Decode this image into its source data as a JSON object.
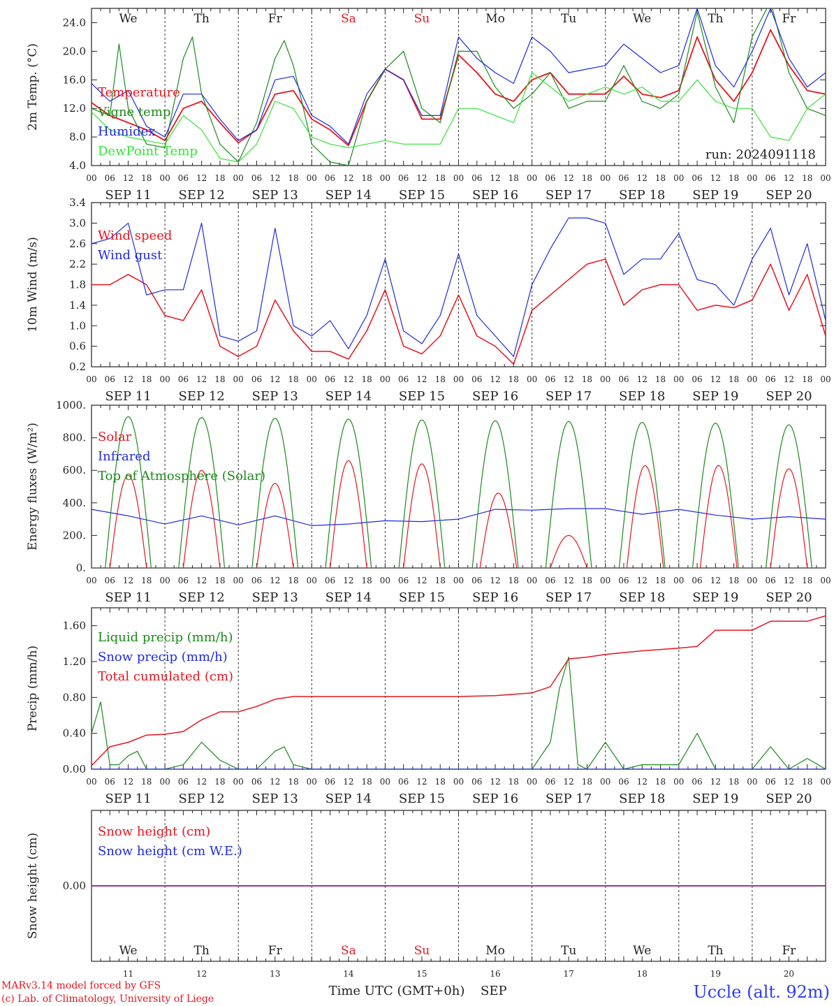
{
  "colors": {
    "red": "#e8141e",
    "dark_green": "#1a8a1a",
    "blue": "#1f2ae0",
    "light_green": "#36e336",
    "purple": "#8a2a8a",
    "axis": "#222222",
    "station": "#2b3ef0"
  },
  "days": [
    "We",
    "Th",
    "Fr",
    "Sa",
    "Su",
    "Mo",
    "Tu",
    "We",
    "Th",
    "Fr"
  ],
  "weekend_days": [
    "Sa",
    "Su"
  ],
  "dates": [
    "SEP 11",
    "SEP 12",
    "SEP 13",
    "SEP 14",
    "SEP 15",
    "SEP 16",
    "SEP 17",
    "SEP 18",
    "SEP 19",
    "SEP 20"
  ],
  "day_numbers": [
    "11",
    "12",
    "13",
    "14",
    "15",
    "16",
    "17",
    "18",
    "19",
    "20"
  ],
  "hour_ticks": [
    "00",
    "06",
    "12",
    "18"
  ],
  "hour_end": "00",
  "run_label": "run: 2024091118",
  "footer": {
    "model": "MARv3.14 model forced by GFS",
    "credit": "(c) Lab. of Climatology, University of Liege",
    "time_axis": "Time UTC (GMT+0h)",
    "month": "SEP",
    "station": "Uccle (alt. 92m)"
  },
  "chart_data": [
    {
      "type": "line",
      "ylabel": "2m Temp. (°C)",
      "ylim": [
        4,
        26
      ],
      "yticks": [
        "4.0",
        "8.0",
        "12.0",
        "16.0",
        "20.0",
        "24.0"
      ],
      "yvals": [
        4,
        8,
        12,
        16,
        20,
        24
      ],
      "x_unit": "hours since SEP 11 00 UTC",
      "series": [
        {
          "name": "Temperature",
          "color": "red",
          "x": [
            0,
            6,
            12,
            18,
            24,
            30,
            36,
            42,
            48,
            54,
            60,
            66,
            72,
            78,
            84,
            90,
            96,
            102,
            108,
            114,
            120,
            126,
            132,
            138,
            144,
            150,
            156,
            162,
            168,
            174,
            180,
            186,
            192,
            198,
            204,
            210,
            216,
            222,
            228,
            234,
            240
          ],
          "values": [
            12.8,
            11,
            10,
            9,
            7.5,
            12,
            13,
            10,
            7.2,
            9,
            14,
            14.5,
            10.5,
            9,
            6.8,
            13,
            17.5,
            16,
            10.5,
            10.5,
            19.5,
            17,
            14,
            13,
            16,
            17,
            14,
            14,
            14,
            16.5,
            14,
            13.5,
            14.5,
            22,
            16,
            13,
            17,
            23,
            18,
            14.5,
            14
          ]
        },
        {
          "name": "Vigne temp",
          "color": "dark_green",
          "x": [
            0,
            6,
            9,
            12,
            18,
            24,
            30,
            33,
            36,
            42,
            48,
            54,
            60,
            63,
            66,
            72,
            78,
            84,
            90,
            96,
            102,
            108,
            114,
            120,
            126,
            132,
            138,
            144,
            150,
            156,
            162,
            168,
            174,
            180,
            186,
            192,
            198,
            204,
            210,
            216,
            222,
            228,
            234,
            240
          ],
          "values": [
            12,
            11,
            21,
            12,
            7,
            6.5,
            19,
            22,
            14,
            7,
            4.5,
            10,
            19,
            21.5,
            18,
            7,
            4.5,
            4,
            13,
            17.5,
            20,
            12,
            10,
            20,
            20,
            15,
            12,
            14,
            17,
            12,
            13,
            13,
            18,
            13,
            12,
            14,
            25.5,
            15,
            10,
            22,
            27,
            17,
            12,
            11
          ]
        },
        {
          "name": "Humidex",
          "color": "blue",
          "x": [
            0,
            6,
            12,
            18,
            24,
            30,
            36,
            42,
            48,
            54,
            60,
            66,
            72,
            78,
            84,
            90,
            96,
            102,
            108,
            114,
            120,
            126,
            132,
            138,
            144,
            150,
            156,
            162,
            168,
            174,
            180,
            186,
            192,
            198,
            204,
            210,
            216,
            222,
            228,
            234,
            240
          ],
          "values": [
            15.5,
            13,
            14.5,
            9.5,
            8,
            14,
            14,
            10.5,
            7.5,
            9,
            16,
            16.5,
            11,
            9.5,
            7,
            14,
            17.5,
            16,
            11,
            11,
            22,
            19,
            17,
            15.5,
            22,
            20,
            17,
            17.5,
            18,
            21,
            19,
            17,
            18,
            26,
            18,
            15,
            20,
            26,
            19,
            15,
            17
          ]
        },
        {
          "name": "DewPoint Temp",
          "color": "light_green",
          "x": [
            0,
            6,
            12,
            18,
            24,
            30,
            36,
            42,
            48,
            54,
            60,
            66,
            72,
            78,
            84,
            90,
            96,
            102,
            108,
            114,
            120,
            126,
            132,
            138,
            144,
            150,
            156,
            162,
            168,
            174,
            180,
            186,
            192,
            198,
            204,
            210,
            216,
            222,
            228,
            234,
            240
          ],
          "values": [
            11.5,
            9,
            8,
            7.5,
            7,
            11,
            9,
            5,
            4.5,
            7,
            13,
            12,
            8,
            7,
            6.5,
            7,
            7.5,
            7,
            7,
            7,
            12,
            12,
            11,
            10,
            17,
            15,
            13,
            14,
            15,
            14,
            15,
            13,
            13,
            16,
            13,
            12,
            12,
            8,
            7.5,
            12,
            14
          ]
        }
      ]
    },
    {
      "type": "line",
      "ylabel": "10m Wind (m/s)",
      "ylim": [
        0.2,
        3.4
      ],
      "yticks": [
        "0.2",
        "0.6",
        "1.0",
        "1.4",
        "1.8",
        "2.2",
        "2.6",
        "3.0",
        "3.4"
      ],
      "yvals": [
        0.2,
        0.6,
        1.0,
        1.4,
        1.8,
        2.2,
        2.6,
        3.0,
        3.4
      ],
      "x_unit": "hours since SEP 11 00 UTC",
      "series": [
        {
          "name": "Wind speed",
          "color": "red",
          "x": [
            0,
            6,
            12,
            18,
            24,
            30,
            36,
            42,
            48,
            54,
            60,
            66,
            72,
            78,
            84,
            90,
            96,
            102,
            108,
            114,
            120,
            126,
            132,
            138,
            144,
            150,
            156,
            162,
            168,
            174,
            180,
            186,
            192,
            198,
            204,
            210,
            216,
            222,
            228,
            234,
            240
          ],
          "values": [
            1.8,
            1.8,
            2.0,
            1.8,
            1.2,
            1.1,
            1.7,
            0.6,
            0.4,
            0.6,
            1.5,
            0.9,
            0.5,
            0.5,
            0.35,
            0.9,
            1.7,
            0.6,
            0.45,
            0.8,
            1.6,
            0.8,
            0.6,
            0.25,
            1.3,
            1.6,
            1.9,
            2.2,
            2.3,
            1.4,
            1.7,
            1.8,
            1.8,
            1.3,
            1.4,
            1.35,
            1.5,
            2.2,
            1.3,
            2.0,
            0.8
          ]
        },
        {
          "name": "Wind gust",
          "color": "blue",
          "x": [
            0,
            6,
            12,
            18,
            24,
            30,
            36,
            42,
            48,
            54,
            60,
            66,
            72,
            78,
            84,
            90,
            96,
            102,
            108,
            114,
            120,
            126,
            132,
            138,
            144,
            150,
            156,
            162,
            168,
            174,
            180,
            186,
            192,
            198,
            204,
            210,
            216,
            222,
            228,
            234,
            240
          ],
          "values": [
            2.6,
            2.7,
            3.0,
            1.6,
            1.7,
            1.7,
            3.0,
            0.8,
            0.7,
            0.9,
            2.9,
            1.0,
            0.8,
            1.1,
            0.55,
            1.2,
            2.3,
            0.9,
            0.65,
            1.2,
            2.4,
            1.2,
            0.8,
            0.4,
            1.8,
            2.5,
            3.1,
            3.1,
            3.0,
            2.0,
            2.3,
            2.3,
            2.8,
            1.9,
            1.8,
            1.4,
            2.3,
            2.9,
            1.6,
            2.6,
            1.1
          ]
        }
      ]
    },
    {
      "type": "line",
      "ylabel": "Energy fluxes (W/m²)",
      "ylim": [
        0,
        1000
      ],
      "yticks": [
        "0.",
        "200.",
        "400.",
        "600.",
        "800.",
        "1000."
      ],
      "yvals": [
        0,
        200,
        400,
        600,
        800,
        1000
      ],
      "x_unit": "hours since SEP 11 00 UTC",
      "series": [
        {
          "name": "Solar",
          "color": "red",
          "peaks": [
            570,
            600,
            520,
            660,
            640,
            460,
            200,
            630,
            630,
            610
          ],
          "peak_hours": [
            12,
            12,
            12,
            12,
            12,
            13,
            12,
            13,
            13,
            12
          ]
        },
        {
          "name": "Infrared",
          "color": "blue",
          "x": [
            0,
            12,
            24,
            36,
            48,
            60,
            72,
            84,
            96,
            108,
            120,
            132,
            144,
            156,
            168,
            180,
            192,
            204,
            216,
            228,
            240
          ],
          "values": [
            360,
            320,
            270,
            320,
            265,
            320,
            260,
            270,
            290,
            285,
            300,
            360,
            355,
            365,
            365,
            330,
            360,
            325,
            300,
            315,
            300
          ]
        },
        {
          "name": "Top of Atmosphere (Solar)",
          "color": "dark_green",
          "peaks": [
            930,
            925,
            920,
            915,
            910,
            905,
            900,
            895,
            890,
            880
          ]
        }
      ]
    },
    {
      "type": "line",
      "ylabel": "Precip (mm/h)",
      "ylim": [
        0,
        1.8
      ],
      "yticks": [
        "0.00",
        "0.40",
        "0.80",
        "1.20",
        "1.60"
      ],
      "yvals": [
        0,
        0.4,
        0.8,
        1.2,
        1.6
      ],
      "x_unit": "hours since SEP 11 00 UTC",
      "series": [
        {
          "name": "Liquid precip (mm/h)",
          "color": "dark_green",
          "x": [
            0,
            3,
            6,
            9,
            12,
            15,
            18,
            24,
            30,
            36,
            39,
            42,
            45,
            48,
            54,
            60,
            63,
            66,
            72,
            96,
            120,
            144,
            150,
            153,
            156,
            159,
            162,
            168,
            174,
            180,
            192,
            198,
            204,
            216,
            222,
            228,
            234,
            240
          ],
          "values": [
            0.4,
            0.75,
            0.05,
            0.05,
            0.15,
            0.2,
            0.0,
            0.0,
            0.05,
            0.3,
            0.2,
            0.1,
            0.05,
            0.0,
            0.0,
            0.2,
            0.25,
            0.05,
            0.0,
            0.0,
            0.0,
            0.0,
            0.3,
            0.9,
            1.25,
            0.05,
            0.0,
            0.3,
            0.0,
            0.05,
            0.05,
            0.4,
            0.0,
            0.0,
            0.25,
            0.0,
            0.12,
            0.0
          ]
        },
        {
          "name": "Snow precip (mm/h)",
          "color": "blue",
          "x": [
            0,
            240
          ],
          "values": [
            0,
            0
          ]
        },
        {
          "name": "Total cumulated (cm)",
          "color": "red",
          "x": [
            0,
            6,
            12,
            18,
            24,
            30,
            36,
            42,
            48,
            54,
            60,
            66,
            72,
            96,
            120,
            132,
            144,
            150,
            156,
            162,
            168,
            180,
            192,
            198,
            204,
            216,
            222,
            228,
            234,
            240
          ],
          "values": [
            0.04,
            0.25,
            0.3,
            0.38,
            0.39,
            0.42,
            0.55,
            0.64,
            0.64,
            0.7,
            0.78,
            0.81,
            0.81,
            0.81,
            0.81,
            0.82,
            0.85,
            0.92,
            1.23,
            1.25,
            1.28,
            1.32,
            1.35,
            1.37,
            1.55,
            1.55,
            1.65,
            1.65,
            1.65,
            1.71
          ]
        }
      ]
    },
    {
      "type": "line",
      "ylabel": "Snow height (cm)",
      "ylim": [
        -1,
        1
      ],
      "yticks": [
        "0.00"
      ],
      "yvals": [
        0
      ],
      "x_unit": "hours since SEP 11 00 UTC",
      "series": [
        {
          "name": "Snow height (cm)",
          "color": "red",
          "x": [
            0,
            240
          ],
          "values": [
            0,
            0
          ]
        },
        {
          "name": "Snow height (cm W.E.)",
          "color": "blue",
          "x": [
            0,
            240
          ],
          "values": [
            0,
            0
          ]
        }
      ]
    }
  ]
}
